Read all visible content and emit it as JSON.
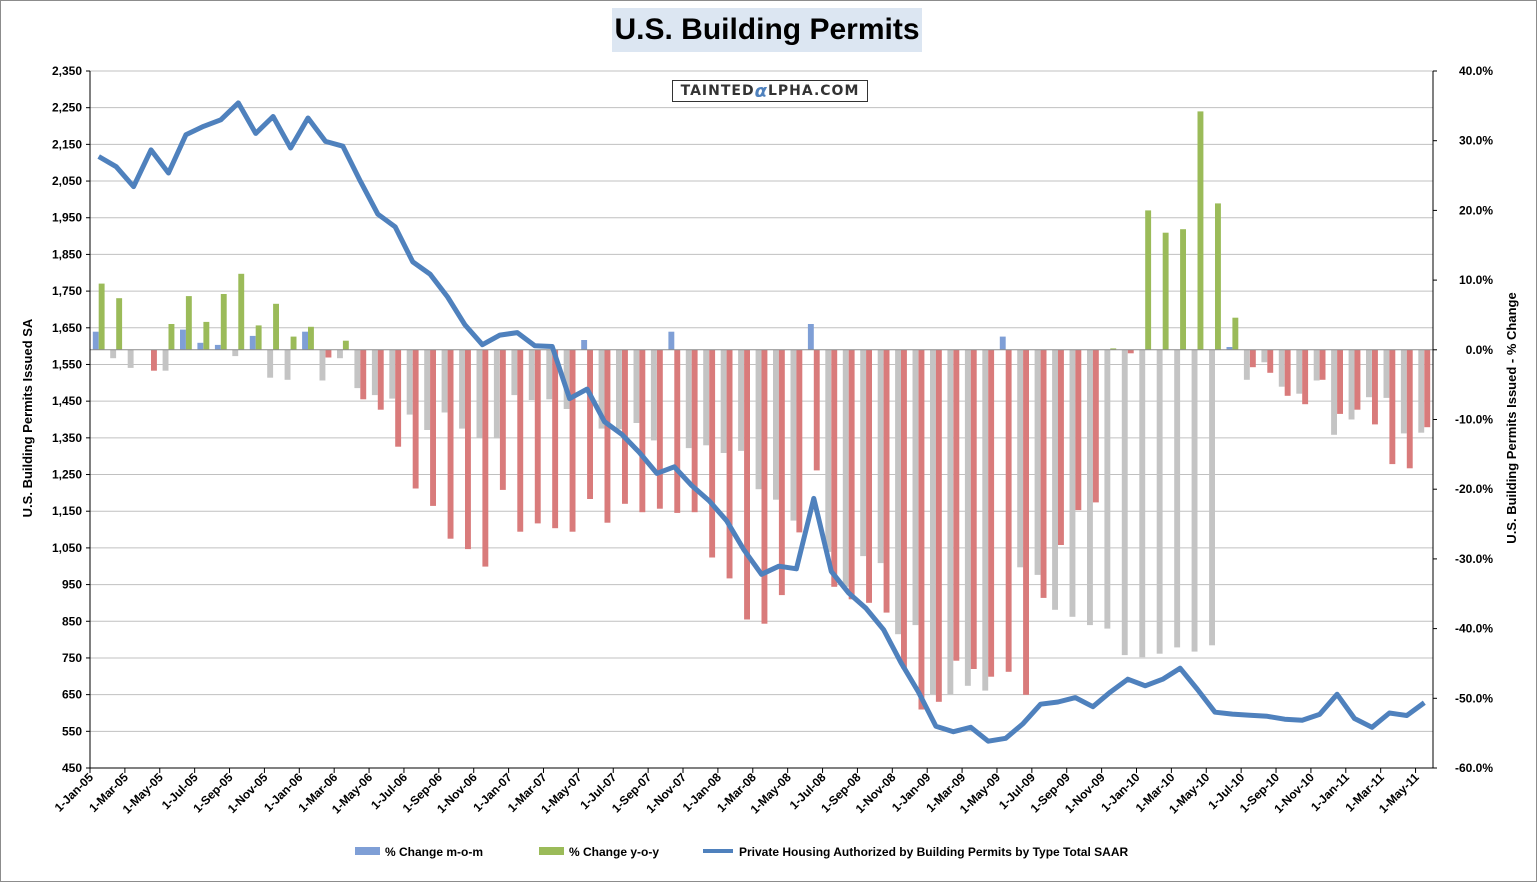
{
  "chart_data": {
    "type": "bar",
    "title": "U.S. Building Permits",
    "watermark": "TaintedAlpha.com",
    "ylabel_left": "U.S. Building Permits Issued SA",
    "ylabel_right": "U.S. Building Permits Issued - % Change",
    "ylim_left": [
      450,
      2350
    ],
    "ylim_right": [
      -60,
      40
    ],
    "left_ticks": [
      "2,350",
      "2,250",
      "2,150",
      "2,050",
      "1,950",
      "1,850",
      "1,750",
      "1,650",
      "1,550",
      "1,450",
      "1,350",
      "1,250",
      "1,150",
      "1,050",
      "950",
      "850",
      "750",
      "650",
      "550",
      "450"
    ],
    "right_ticks": [
      "40.0%",
      "30.0%",
      "20.0%",
      "10.0%",
      "0.0%",
      "-10.0%",
      "-20.0%",
      "-30.0%",
      "-40.0%",
      "-50.0%",
      "-60.0%"
    ],
    "x_tick_labels": [
      "1-Jan-05",
      "1-Mar-05",
      "1-May-05",
      "1-Jul-05",
      "1-Sep-05",
      "1-Nov-05",
      "1-Jan-06",
      "1-Mar-06",
      "1-May-06",
      "1-Jul-06",
      "1-Sep-06",
      "1-Nov-06",
      "1-Jan-07",
      "1-Mar-07",
      "1-May-07",
      "1-Jul-07",
      "1-Sep-07",
      "1-Nov-07",
      "1-Jan-08",
      "1-Mar-08",
      "1-May-08",
      "1-Jul-08",
      "1-Sep-08",
      "1-Nov-08",
      "1-Jan-09",
      "1-Mar-09",
      "1-May-09",
      "1-Jul-09",
      "1-Sep-09",
      "1-Nov-09",
      "1-Jan-10",
      "1-Mar-10",
      "1-May-10",
      "1-Jul-10",
      "1-Sep-10",
      "1-Nov-10",
      "1-Jan-11",
      "1-Mar-11",
      "1-May-11"
    ],
    "categories": [
      "Jan-05",
      "Feb-05",
      "Mar-05",
      "Apr-05",
      "May-05",
      "Jun-05",
      "Jul-05",
      "Aug-05",
      "Sep-05",
      "Oct-05",
      "Nov-05",
      "Dec-05",
      "Jan-06",
      "Feb-06",
      "Mar-06",
      "Apr-06",
      "May-06",
      "Jun-06",
      "Jul-06",
      "Aug-06",
      "Sep-06",
      "Oct-06",
      "Nov-06",
      "Dec-06",
      "Jan-07",
      "Feb-07",
      "Mar-07",
      "Apr-07",
      "May-07",
      "Jun-07",
      "Jul-07",
      "Aug-07",
      "Sep-07",
      "Oct-07",
      "Nov-07",
      "Dec-07",
      "Jan-08",
      "Feb-08",
      "Mar-08",
      "Apr-08",
      "May-08",
      "Jun-08",
      "Jul-08",
      "Aug-08",
      "Sep-08",
      "Oct-08",
      "Nov-08",
      "Dec-08",
      "Jan-09",
      "Feb-09",
      "Mar-09",
      "Apr-09",
      "May-09",
      "Jun-09",
      "Jul-09",
      "Aug-09",
      "Sep-09",
      "Oct-09",
      "Nov-09",
      "Dec-09",
      "Jan-10",
      "Feb-10",
      "Mar-10",
      "Apr-10",
      "May-10",
      "Jun-10",
      "Jul-10",
      "Aug-10",
      "Sep-10",
      "Oct-10",
      "Nov-10",
      "Dec-10",
      "Jan-11",
      "Feb-11",
      "Mar-11",
      "Apr-11",
      "May-11"
    ],
    "series": [
      {
        "name": "% Change m-o-m",
        "kind": "bar",
        "color": "#7f9fd6",
        "neg_color": "#c4c4c4",
        "values": [
          2.6,
          -1.2,
          -2.6,
          0,
          -3.0,
          2.9,
          1.0,
          0.7,
          -0.9,
          2.0,
          -4.0,
          -4.3,
          2.6,
          -4.4,
          -1.2,
          -5.5,
          -6.5,
          -7.0,
          -9.3,
          -11.5,
          -9.0,
          -11.3,
          -12.6,
          -12.7,
          -6.5,
          -7.2,
          -7.1,
          -8.5,
          1.4,
          -11.3,
          -11.4,
          -10.5,
          -13.0,
          2.6,
          -14.1,
          -13.7,
          -14.8,
          -14.5,
          -20.0,
          -21.5,
          -24.5,
          3.7,
          -29.0,
          -34.0,
          -29.6,
          -30.6,
          -40.8,
          -39.5,
          -49.4,
          -49.4,
          -48.2,
          -48.9,
          1.9,
          -31.2,
          -32.3,
          -37.3,
          -38.3,
          -39.5,
          -40.0,
          -43.8,
          -44.1,
          -43.6,
          -42.7,
          -43.3,
          -42.4,
          0.4,
          -4.3,
          -1.8,
          -5.3,
          -6.3,
          -4.4,
          -12.2,
          -10.0,
          -6.8,
          -6.9,
          -12.0,
          -11.9
        ]
      },
      {
        "name": "% Change y-o-y",
        "kind": "bar",
        "color": "#9bbb59",
        "neg_color": "#d97b7b",
        "values": [
          9.5,
          7.4,
          0,
          -3.0,
          3.7,
          7.7,
          4.0,
          8.0,
          10.9,
          3.5,
          6.6,
          1.9,
          3.3,
          -1.1,
          1.3,
          -7.1,
          -8.6,
          -13.9,
          -19.9,
          -22.4,
          -27.1,
          -28.6,
          -31.1,
          -20.1,
          -26.1,
          -24.9,
          -25.6,
          -26.1,
          -21.4,
          -24.8,
          -22.1,
          -23.3,
          -22.8,
          -23.4,
          -23.3,
          -29.8,
          -32.8,
          -38.7,
          -39.3,
          -35.2,
          -26.2,
          -17.3,
          -34.0,
          -35.8,
          -36.3,
          -37.7,
          -45.7,
          -51.6,
          -50.5,
          -44.6,
          -45.8,
          -46.9,
          -46.2,
          -49.5,
          -35.6,
          -28.0,
          -23.0,
          -21.9,
          0.2,
          -0.5,
          20.0,
          16.8,
          17.3,
          34.2,
          21.0,
          4.6,
          -2.5,
          -3.3,
          -6.6,
          -7.8,
          -4.3,
          -9.2,
          -8.6,
          -10.7,
          -16.4,
          -17.0,
          -11.1
        ]
      },
      {
        "name": "Private Housing Authorized by Building Permits by Type Total SAAR",
        "kind": "line",
        "color": "#4f81bd",
        "values": [
          2117,
          2089,
          2035,
          2135,
          2072,
          2176,
          2199,
          2217,
          2263,
          2180,
          2226,
          2140,
          2222,
          2158,
          2145,
          2050,
          1960,
          1925,
          1830,
          1796,
          1734,
          1658,
          1604,
          1630,
          1637,
          1601,
          1599,
          1457,
          1483,
          1394,
          1359,
          1310,
          1253,
          1271,
          1220,
          1178,
          1124,
          1044,
          978,
          1000,
          993,
          1185,
          986,
          927,
          885,
          827,
          737,
          657,
          564,
          549,
          561,
          523,
          531,
          571,
          624,
          630,
          642,
          617,
          657,
          692,
          674,
          692,
          722,
          664,
          602,
          597,
          594,
          591,
          583,
          580,
          596,
          651,
          585,
          561,
          600,
          593,
          628
        ]
      }
    ]
  }
}
